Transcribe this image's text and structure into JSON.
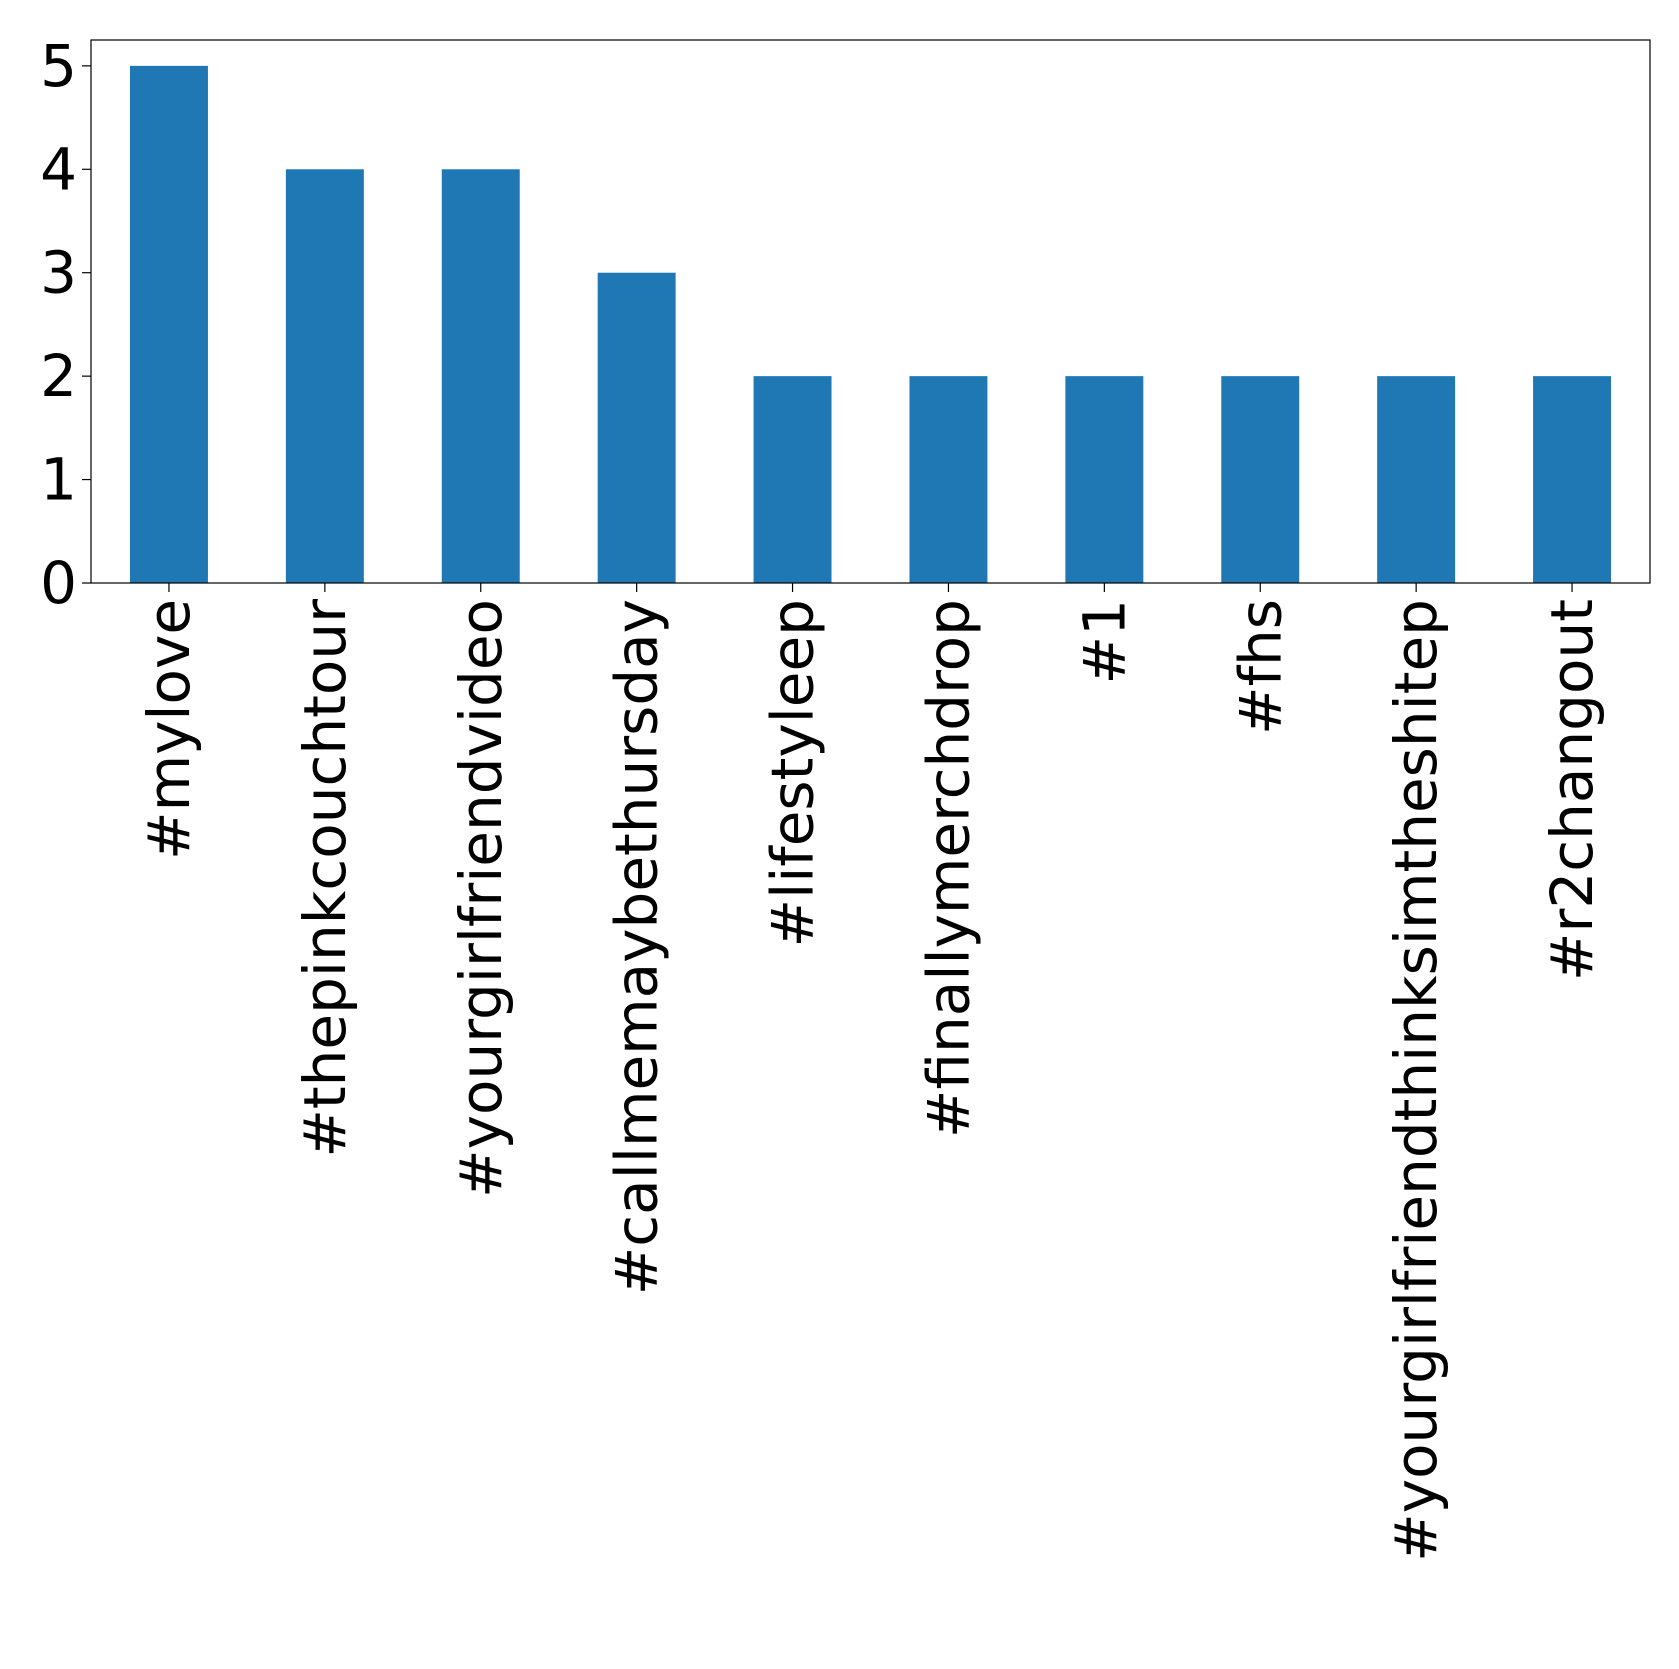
{
  "chart_data": {
    "type": "bar",
    "categories": [
      "#mylove",
      "#thepinkcouchtour",
      "#yourgirlfriendvideo",
      "#callmemaybethursday",
      "#lifestyleep",
      "#finallymerchdrop",
      "#1",
      "#fhs",
      "#yourgirlfriendthinksimtheshitep",
      "#r2changout"
    ],
    "values": [
      5,
      4,
      4,
      3,
      2,
      2,
      2,
      2,
      2,
      2
    ],
    "ylim": [
      0,
      5.25
    ],
    "yticks": [
      0,
      1,
      2,
      3,
      4,
      5
    ],
    "title": "",
    "xlabel": "",
    "ylabel": "",
    "grid": false,
    "bar_color": "#1f77b4"
  }
}
